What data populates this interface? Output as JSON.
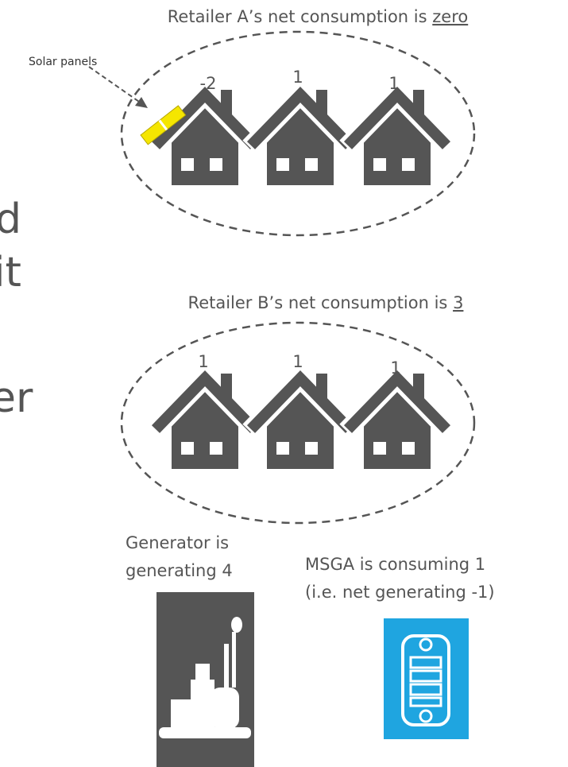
{
  "left_fragments": [
    "d",
    "it",
    "er"
  ],
  "retailer_a": {
    "caption": "Retailer A’s net consumption is",
    "value": "zero",
    "house_labels": [
      -2,
      1,
      1
    ],
    "solar_label": "Solar panels"
  },
  "retailer_b": {
    "caption": "Retailer B’s net consumption is",
    "value": "3",
    "house_labels": [
      1,
      1,
      1
    ]
  },
  "generator": {
    "caption": [
      "Generator is",
      "generating 4"
    ]
  },
  "msga": {
    "caption": [
      "MSGA is consuming 1",
      "(i.e. net generating -1)"
    ]
  }
}
